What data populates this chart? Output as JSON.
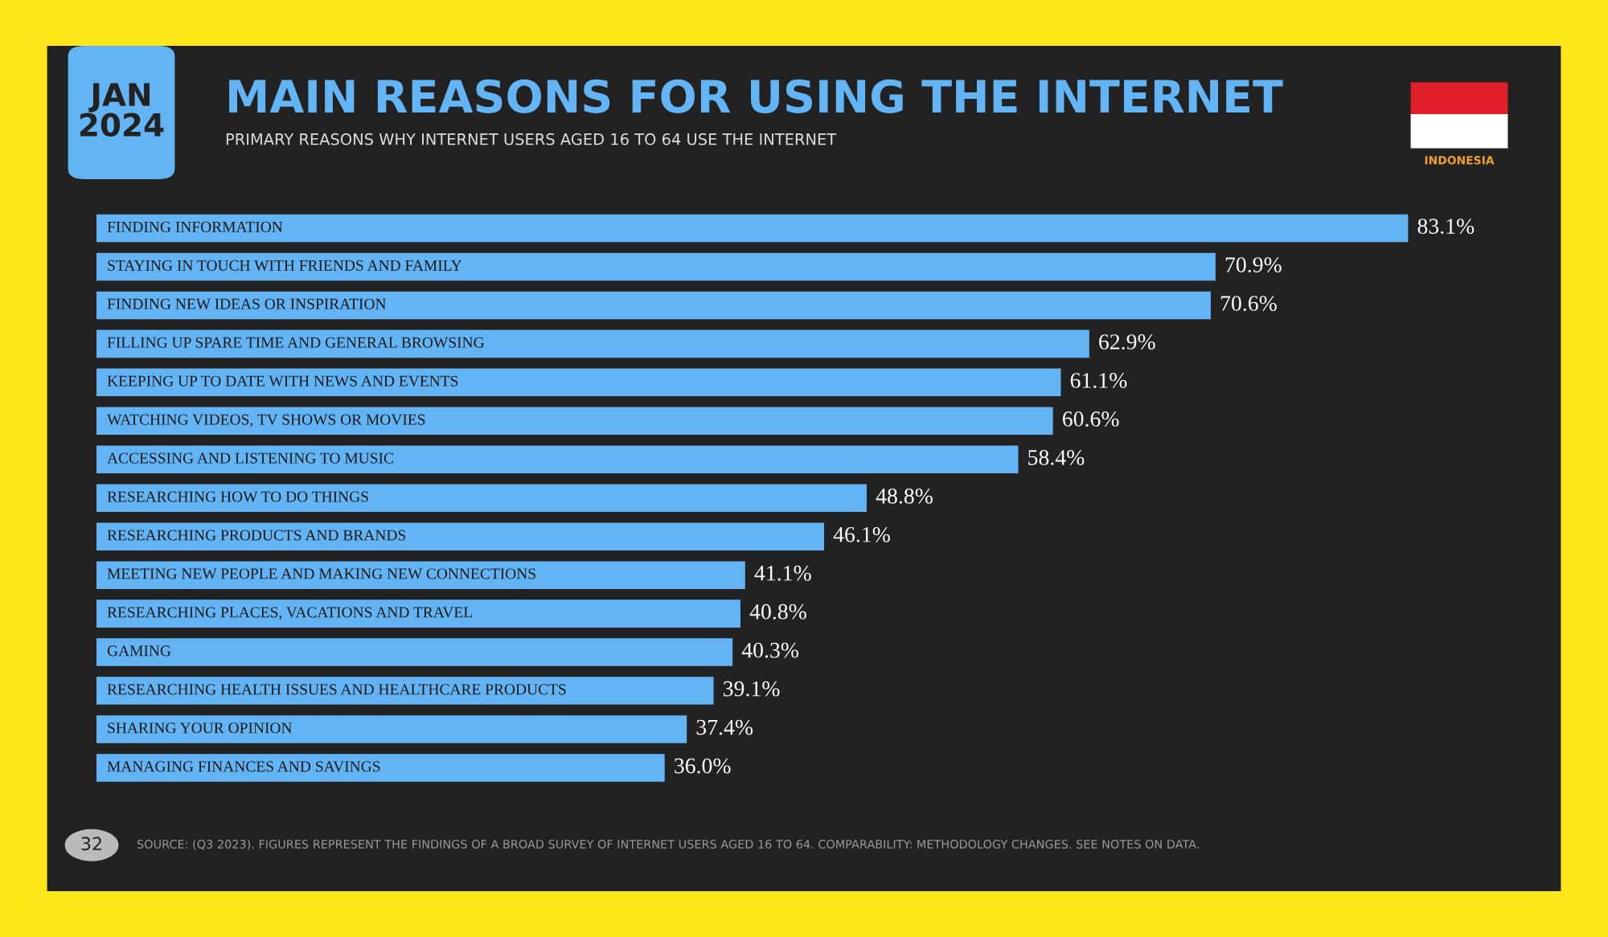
{
  "chart_data": {
    "type": "bar",
    "orientation": "horizontal",
    "title": "MAIN REASONS FOR USING THE INTERNET",
    "subtitle": "PRIMARY REASONS WHY INTERNET USERS AGED 16 TO 64 USE THE INTERNET",
    "categories": [
      "FINDING INFORMATION",
      "STAYING IN TOUCH WITH FRIENDS AND FAMILY",
      "FINDING NEW IDEAS OR INSPIRATION",
      "FILLING UP SPARE TIME AND GENERAL BROWSING",
      "KEEPING UP TO DATE WITH NEWS AND EVENTS",
      "WATCHING VIDEOS, TV SHOWS OR MOVIES",
      "ACCESSING AND LISTENING TO MUSIC",
      "RESEARCHING HOW TO DO THINGS",
      "RESEARCHING PRODUCTS AND BRANDS",
      "MEETING NEW PEOPLE AND MAKING NEW CONNECTIONS",
      "RESEARCHING PLACES, VACATIONS AND TRAVEL",
      "GAMING",
      "RESEARCHING HEALTH ISSUES AND HEALTHCARE PRODUCTS",
      "SHARING YOUR OPINION",
      "MANAGING FINANCES AND SAVINGS"
    ],
    "values": [
      83.1,
      70.9,
      70.6,
      62.9,
      61.1,
      60.6,
      58.4,
      48.8,
      46.1,
      41.1,
      40.8,
      40.3,
      39.1,
      37.4,
      36.0
    ],
    "value_labels": [
      "83.1%",
      "70.9%",
      "70.6%",
      "62.9%",
      "61.1%",
      "60.6%",
      "58.4%",
      "48.8%",
      "46.1%",
      "41.1%",
      "40.8%",
      "40.3%",
      "39.1%",
      "37.4%",
      "36.0%"
    ],
    "color": "#62b4f4",
    "annotations": [
      "JAN 2024",
      "INDONESIA",
      "32",
      "SOURCE: (Q3 2023). FIGURES REPRESENT THE FINDINGS OF A BROAD SURVEY OF INTERNET USERS AGED 16 TO 64. COMPARABILITY: METHODOLOGY CHANGES. SEE NOTES ON DATA."
    ]
  }
}
